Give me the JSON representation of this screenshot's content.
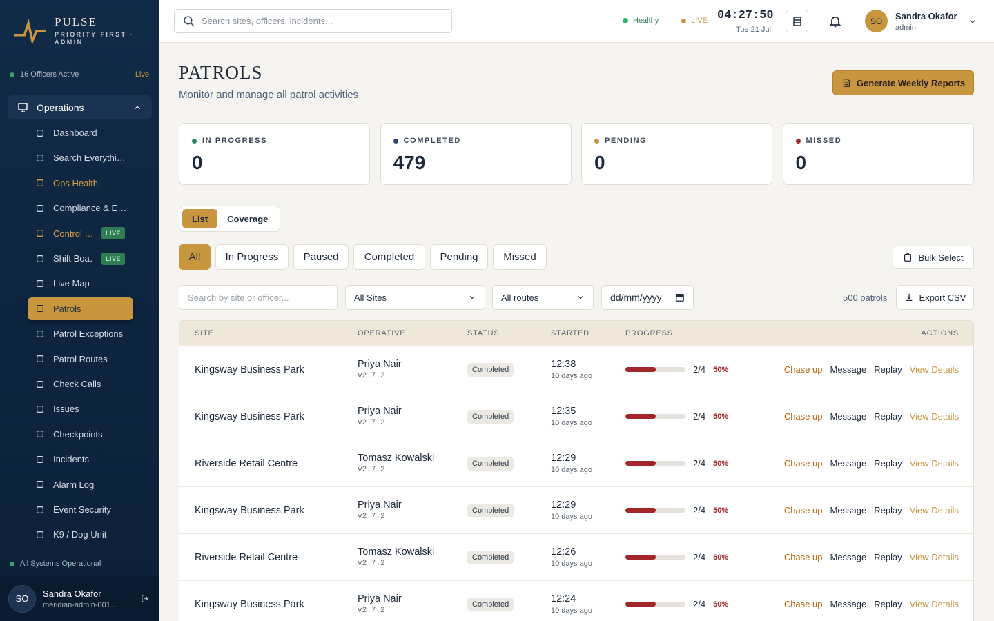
{
  "sidebar": {
    "brand": "PULSE",
    "tagline": "PRIORITY FIRST · ADMIN",
    "officers": "16 Officers Active",
    "live": "Live",
    "group": "Operations",
    "items": [
      {
        "label": "Dashboard"
      },
      {
        "label": "Search Everythi…"
      },
      {
        "label": "Ops Health",
        "color": "#e0a143"
      },
      {
        "label": "Compliance & E…"
      },
      {
        "label": "Control …",
        "color": "#e0a143",
        "badge": "LIVE"
      },
      {
        "label": "Shift Boa…",
        "badge": "LIVE"
      },
      {
        "label": "Live Map"
      },
      {
        "label": "Patrols",
        "active": true
      },
      {
        "label": "Patrol Exceptions"
      },
      {
        "label": "Patrol Routes"
      },
      {
        "label": "Check Calls"
      },
      {
        "label": "Issues"
      },
      {
        "label": "Checkpoints"
      },
      {
        "label": "Incidents"
      },
      {
        "label": "Alarm Log"
      },
      {
        "label": "Event Security"
      },
      {
        "label": "K9 / Dog Unit"
      }
    ],
    "status": "All Systems Operational",
    "user": {
      "initials": "SO",
      "name": "Sandra Okafor",
      "id": "meridian-admin-001…"
    }
  },
  "topbar": {
    "search_placeholder": "Search sites, officers, incidents...",
    "health": "Healthy",
    "live": "LIVE",
    "time": "04:27:50",
    "date": "Tue 21 Jul",
    "user": {
      "initials": "SO",
      "name": "Sandra Okafor",
      "role": "admin"
    }
  },
  "header": {
    "title": "PATROLS",
    "subtitle": "Monitor and manage all patrol activities",
    "button": "Generate Weekly Reports"
  },
  "stats": [
    {
      "label": "IN PROGRESS",
      "value": 0,
      "color": "#2f7d62"
    },
    {
      "label": "COMPLETED",
      "value": 479,
      "color": "#2d4a6b"
    },
    {
      "label": "PENDING",
      "value": 0,
      "color": "#c8963e"
    },
    {
      "label": "MISSED",
      "value": 0,
      "color": "#a3262a"
    }
  ],
  "view_tabs": [
    "List",
    "Coverage"
  ],
  "filters": [
    "All",
    "In Progress",
    "Paused",
    "Completed",
    "Pending",
    "Missed"
  ],
  "bulk_select": "Bulk Select",
  "search_placeholder": "Search by site or officer...",
  "sites_select": "All Sites",
  "routes_select": "All routes",
  "date_placeholder": "dd/mm/yyyy",
  "count": "500 patrols",
  "export": "Export CSV",
  "table": {
    "columns": [
      "SITE",
      "OPERATIVE",
      "STATUS",
      "STARTED",
      "PROGRESS",
      "ACTIONS"
    ],
    "actions": [
      "Chase up",
      "Message",
      "Replay",
      "View Details"
    ],
    "rows": [
      {
        "site": "Kingsway Business Park",
        "operative": "Priya Nair",
        "version": "v2.7.2",
        "status": "Completed",
        "started": "12:38",
        "ago": "10 days ago",
        "progress": "2/4",
        "percent": "50%"
      },
      {
        "site": "Kingsway Business Park",
        "operative": "Priya Nair",
        "version": "v2.7.2",
        "status": "Completed",
        "started": "12:35",
        "ago": "10 days ago",
        "progress": "2/4",
        "percent": "50%"
      },
      {
        "site": "Riverside Retail Centre",
        "operative": "Tomasz Kowalski",
        "version": "v2.7.2",
        "status": "Completed",
        "started": "12:29",
        "ago": "10 days ago",
        "progress": "2/4",
        "percent": "50%"
      },
      {
        "site": "Kingsway Business Park",
        "operative": "Priya Nair",
        "version": "v2.7.2",
        "status": "Completed",
        "started": "12:29",
        "ago": "10 days ago",
        "progress": "2/4",
        "percent": "50%"
      },
      {
        "site": "Riverside Retail Centre",
        "operative": "Tomasz Kowalski",
        "version": "v2.7.2",
        "status": "Completed",
        "started": "12:26",
        "ago": "10 days ago",
        "progress": "2/4",
        "percent": "50%"
      },
      {
        "site": "Kingsway Business Park",
        "operative": "Priya Nair",
        "version": "v2.7.2",
        "status": "Completed",
        "started": "12:24",
        "ago": "10 days ago",
        "progress": "2/4",
        "percent": "50%"
      }
    ]
  }
}
